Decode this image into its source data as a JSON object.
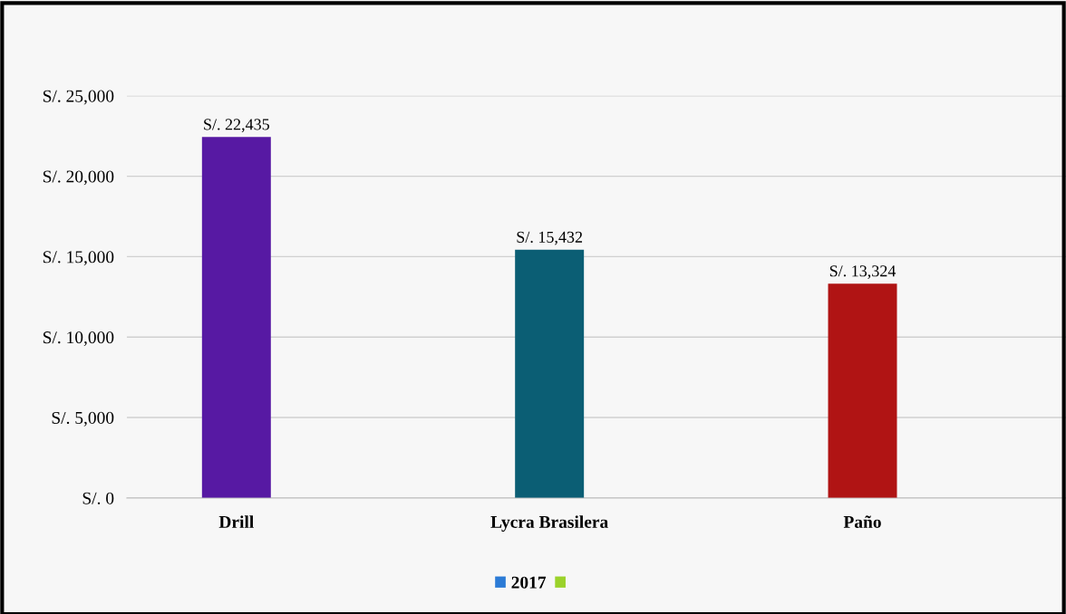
{
  "chart_data": {
    "type": "bar",
    "categories": [
      "Drill",
      "Lycra Brasilera",
      "Paño"
    ],
    "series": [
      {
        "name": "2017",
        "color": "#2b7bd6",
        "colors": [
          "#5719a3",
          "#0b5e74",
          "#b01414"
        ],
        "values": [
          22435,
          15432,
          13324
        ],
        "value_labels": [
          "S/. 22,435",
          "S/. 15,432",
          "S/. 13,324"
        ]
      },
      {
        "color": "#9bd22a",
        "values": [
          null,
          null,
          null
        ]
      }
    ],
    "ylim": [
      0,
      25000
    ],
    "yticks": [
      {
        "value": 0,
        "label": "S/. 0"
      },
      {
        "value": 5000,
        "label": "S/. 5,000"
      },
      {
        "value": 10000,
        "label": "S/. 10,000"
      },
      {
        "value": 15000,
        "label": "S/. 15,000"
      },
      {
        "value": 20000,
        "label": "S/. 20,000"
      },
      {
        "value": 25000,
        "label": "S/. 25,000"
      }
    ],
    "grid": "y",
    "legend": "bottom"
  }
}
